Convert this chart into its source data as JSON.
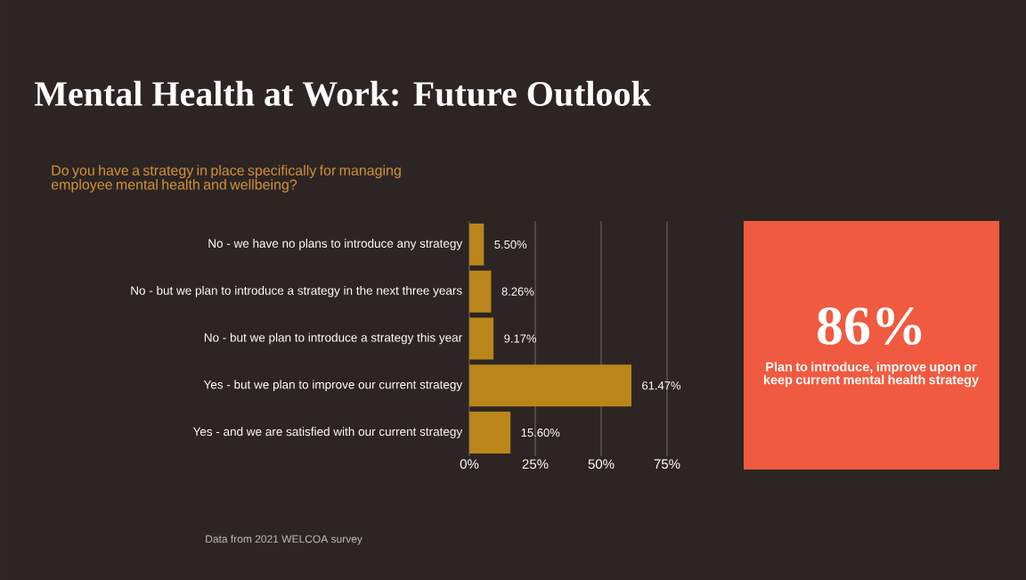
{
  "chart_data": {
    "type": "bar",
    "orientation": "horizontal",
    "title": "Mental Health at Work: Future Outlook",
    "subtitle": "Do you have a strategy in place specifically for managing employee mental health and wellbeing?",
    "categories": [
      "No - we have no plans to introduce any strategy",
      "No - but we plan to introduce a strategy in the next three years",
      "No - but we plan to introduce a strategy this year",
      "Yes - but we plan to improve our current strategy",
      "Yes - and we are satisfied with our current strategy"
    ],
    "values": [
      5.5,
      8.26,
      9.17,
      61.47,
      15.6
    ],
    "value_labels": [
      "5.50%",
      "8.26%",
      "9.17%",
      "61.47%",
      "15.60%"
    ],
    "color": "#b8861b",
    "xlim": [
      0,
      75
    ],
    "xticks": [
      {
        "value": 0,
        "label": "0%"
      },
      {
        "value": 25,
        "label": "25%"
      },
      {
        "value": 50,
        "label": "50%"
      },
      {
        "value": 75,
        "label": "75%"
      }
    ],
    "grid": "x",
    "annotations": [
      "86%",
      "Plan to introduce, improve upon or keep current mental health strategy",
      "Data from 2021 WELCOA survey"
    ]
  }
}
